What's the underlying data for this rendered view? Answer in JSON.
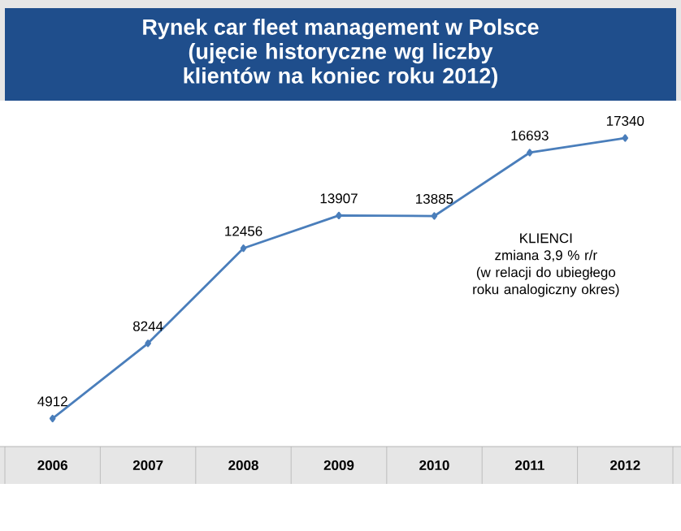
{
  "chart_data": {
    "type": "line",
    "title": "Rynek car fleet management w Polsce",
    "subtitle": "(ujęcie historyczne wg liczby klientów na koniec roku 2012)",
    "categories": [
      "2006",
      "2007",
      "2008",
      "2009",
      "2010",
      "2011",
      "2012"
    ],
    "values": [
      4912,
      8244,
      12456,
      13907,
      13885,
      16693,
      17340
    ],
    "color": "#4a7ebb",
    "marker": "diamond",
    "data_labels": true,
    "annotations": [
      "KLIENCI",
      "zmiana 3,9 % r/r",
      "(w relacji do ubiegłego roku analogiczny okres)"
    ]
  }
}
